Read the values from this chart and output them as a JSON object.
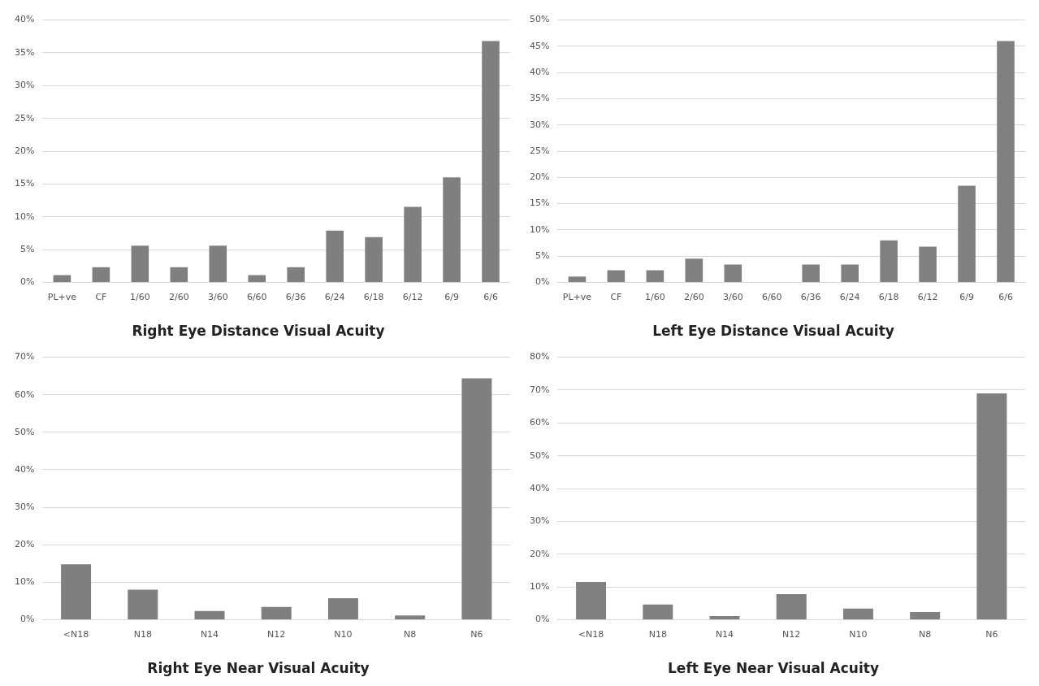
{
  "chart_data": [
    {
      "type": "bar",
      "title": "Right Eye Distance Visual Acuity",
      "categories": [
        "PL+ve",
        "CF",
        "1/60",
        "2/60",
        "3/60",
        "6/60",
        "6/36",
        "6/24",
        "6/18",
        "6/12",
        "6/9",
        "6/6"
      ],
      "values": [
        1.1,
        2.3,
        5.6,
        2.3,
        5.6,
        1.1,
        2.3,
        7.9,
        6.9,
        11.5,
        16,
        36.8
      ],
      "color": "#7f7f7f",
      "ylim": [
        0,
        40
      ],
      "yticks": [
        {
          "value": 0,
          "label": "0%"
        },
        {
          "value": 5,
          "label": "5%"
        },
        {
          "value": 10,
          "label": "10%"
        },
        {
          "value": 15,
          "label": "15%"
        },
        {
          "value": 20,
          "label": "20%"
        },
        {
          "value": 25,
          "label": "25%"
        },
        {
          "value": 30,
          "label": "30%"
        },
        {
          "value": 35,
          "label": "35%"
        },
        {
          "value": 40,
          "label": "40%"
        }
      ],
      "grid": "y",
      "legend": false
    },
    {
      "type": "bar",
      "title": "Left Eye Distance Visual Acuity",
      "categories": [
        "PL+ve",
        "CF",
        "1/60",
        "2/60",
        "3/60",
        "6/60",
        "6/36",
        "6/24",
        "6/18",
        "6/12",
        "6/9",
        "6/6"
      ],
      "values": [
        1.1,
        2.3,
        2.3,
        4.5,
        3.4,
        0,
        3.4,
        3.4,
        8,
        6.8,
        18.4,
        46
      ],
      "color": "#808080",
      "ylim": [
        0,
        50
      ],
      "yticks": [
        {
          "value": 0,
          "label": "0%"
        },
        {
          "value": 5,
          "label": "5%"
        },
        {
          "value": 10,
          "label": "10%"
        },
        {
          "value": 15,
          "label": "15%"
        },
        {
          "value": 20,
          "label": "20%"
        },
        {
          "value": 25,
          "label": "25%"
        },
        {
          "value": 30,
          "label": "30%"
        },
        {
          "value": 35,
          "label": "35%"
        },
        {
          "value": 40,
          "label": "40%"
        },
        {
          "value": 45,
          "label": "45%"
        },
        {
          "value": 50,
          "label": "50%"
        }
      ],
      "grid": "y",
      "legend": false
    },
    {
      "type": "bar",
      "title": "Right Eye Near Visual Acuity",
      "categories": [
        "<N18",
        "N18",
        "N14",
        "N12",
        "N10",
        "N8",
        "N6"
      ],
      "values": [
        14.8,
        8,
        2.3,
        3.4,
        5.7,
        1.1,
        64.4
      ],
      "color": "#7f7f7f",
      "ylim": [
        0,
        70
      ],
      "yticks": [
        {
          "value": 0,
          "label": "0%"
        },
        {
          "value": 10,
          "label": "10%"
        },
        {
          "value": 20,
          "label": "20%"
        },
        {
          "value": 30,
          "label": "30%"
        },
        {
          "value": 40,
          "label": "40%"
        },
        {
          "value": 50,
          "label": "50%"
        },
        {
          "value": 60,
          "label": "60%"
        },
        {
          "value": 70,
          "label": "70%"
        }
      ],
      "grid": "y",
      "legend": false
    },
    {
      "type": "bar",
      "title": "Left Eye Near Visual Acuity",
      "categories": [
        "<N18",
        "N18",
        "N14",
        "N12",
        "N10",
        "N8",
        "N6"
      ],
      "values": [
        11.5,
        4.6,
        1.1,
        7.8,
        3.4,
        2.3,
        69
      ],
      "color": "#808080",
      "ylim": [
        0,
        80
      ],
      "yticks": [
        {
          "value": 0,
          "label": "0%"
        },
        {
          "value": 10,
          "label": "10%"
        },
        {
          "value": 20,
          "label": "20%"
        },
        {
          "value": 30,
          "label": "30%"
        },
        {
          "value": 40,
          "label": "40%"
        },
        {
          "value": 50,
          "label": "50%"
        },
        {
          "value": 60,
          "label": "60%"
        },
        {
          "value": 70,
          "label": "70%"
        },
        {
          "value": 80,
          "label": "80%"
        }
      ],
      "grid": "y",
      "legend": false
    }
  ]
}
